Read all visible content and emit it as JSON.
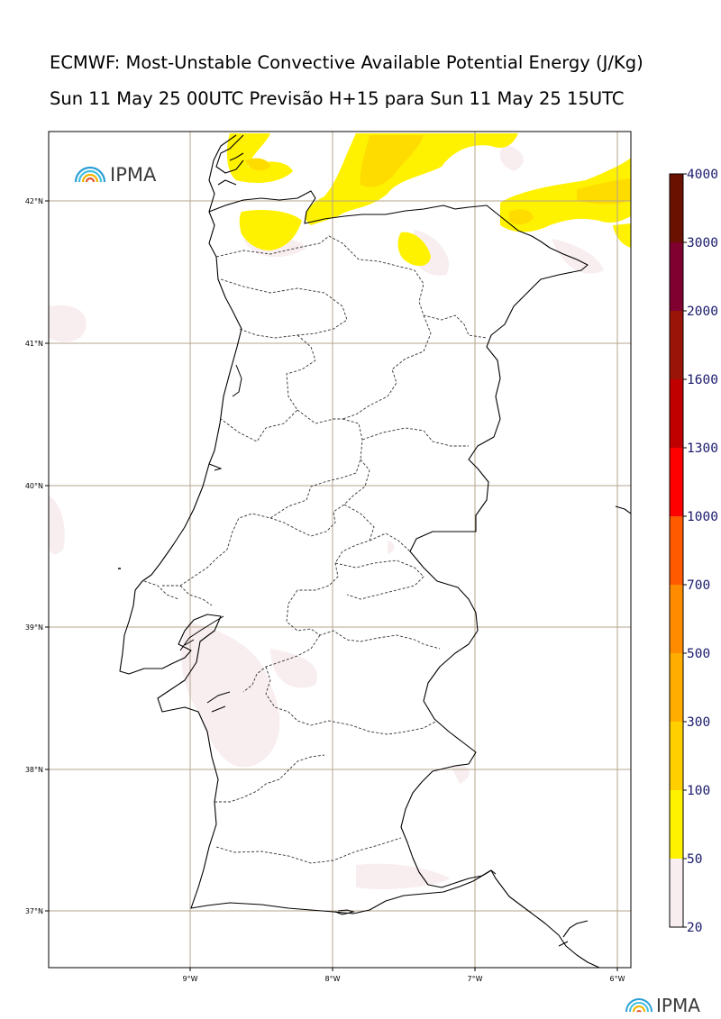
{
  "header": {
    "title": "ECMWF: Most-Unstable Convective Available Potential Energy (J/Kg)",
    "subtitle": "Sun 11 May 25 00UTC Previsão H+15 para Sun 11 May 25 15UTC"
  },
  "logo": {
    "text": "IPMA",
    "icon": "rainbow-arc-icon"
  },
  "footer_logo": {
    "text": "IPMA",
    "icon": "rainbow-arc-icon"
  },
  "axes": {
    "longitude_ticks": [
      "9°W",
      "8°W",
      "7°W",
      "6°W"
    ],
    "latitude_ticks": [
      "42°N",
      "41°N",
      "40°N",
      "39°N",
      "38°N",
      "37°N"
    ],
    "gridlines": true
  },
  "colorbar": {
    "unit": "J/Kg",
    "levels": [
      "4000",
      "3000",
      "2000",
      "1600",
      "1300",
      "1000",
      "700",
      "500",
      "300",
      "100",
      "50",
      "20"
    ],
    "colors": [
      "#6b1100",
      "#800030",
      "#9b1408",
      "#c00000",
      "#ff0000",
      "#ff5a00",
      "#ff8c00",
      "#ffad00",
      "#ffcf00",
      "#fff200",
      "#f8eef0"
    ]
  },
  "colors": {
    "cape_low": "#f8eef0",
    "cape_50": "#fff200",
    "cape_100": "#ffdc00",
    "grid": "#b5a58e",
    "coast": "#000000"
  }
}
